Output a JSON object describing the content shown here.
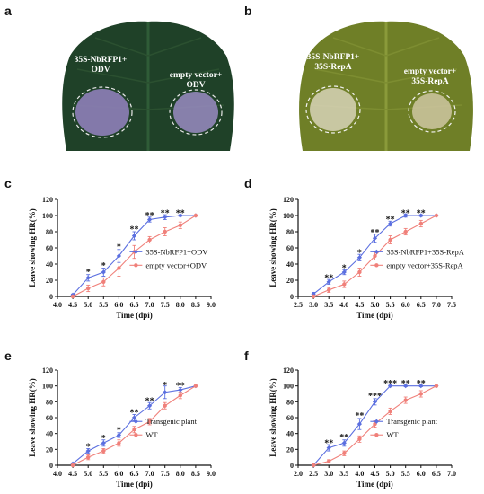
{
  "panels": {
    "a": {
      "letter": "a",
      "label_left": [
        "35S-NbRFP1+",
        "ODV"
      ],
      "label_right": [
        "empty vector+",
        "ODV"
      ]
    },
    "b": {
      "letter": "b",
      "label_left": [
        "35S-NbRFP1+",
        "35S-RepA"
      ],
      "label_right": [
        "empty vector+",
        "35S-RepA"
      ]
    }
  },
  "colors": {
    "series_blue": "#5b6fe0",
    "series_red": "#f0807a",
    "axis": "#111111",
    "leaf_dark": "#1b3a22",
    "leaf_yellow": "#7a8a2a"
  },
  "chart_data": [
    {
      "id": "c",
      "letter": "c",
      "type": "line",
      "xlabel": "Time (dpi)",
      "ylabel": "Leave showing HR(%)",
      "xlim": [
        4.0,
        9.0
      ],
      "xticks": [
        4.0,
        4.5,
        5.0,
        5.5,
        6.0,
        6.5,
        7.0,
        7.5,
        8.0,
        8.5,
        9.0
      ],
      "ylim": [
        0,
        120
      ],
      "yticks": [
        0,
        20,
        40,
        60,
        80,
        100,
        120
      ],
      "legend_position": "center-right",
      "series": [
        {
          "name": "35S-NbRFP1+ODV",
          "color": "#5b6fe0",
          "marker": "diamond",
          "x": [
            4.5,
            5.0,
            5.5,
            6.0,
            6.5,
            7.0,
            7.5,
            8.0,
            8.5
          ],
          "y": [
            2,
            23,
            30,
            50,
            75,
            95,
            98,
            100,
            100
          ],
          "err": [
            1,
            4,
            5,
            8,
            5,
            3,
            3,
            1,
            0
          ]
        },
        {
          "name": "empty vector+ODV",
          "color": "#f0807a",
          "marker": "circle",
          "x": [
            4.5,
            5.0,
            5.5,
            6.0,
            6.5,
            7.0,
            7.5,
            8.0,
            8.5
          ],
          "y": [
            0,
            10,
            18,
            35,
            55,
            70,
            80,
            88,
            100
          ],
          "err": [
            1,
            4,
            5,
            10,
            8,
            4,
            5,
            4,
            0
          ]
        }
      ],
      "annotations": [
        {
          "x": 5.0,
          "y": 30,
          "text": "*"
        },
        {
          "x": 5.5,
          "y": 38,
          "text": "*"
        },
        {
          "x": 6.0,
          "y": 61,
          "text": "*"
        },
        {
          "x": 6.5,
          "y": 83,
          "text": "**"
        },
        {
          "x": 7.0,
          "y": 100,
          "text": "**"
        },
        {
          "x": 7.5,
          "y": 103,
          "text": "**"
        },
        {
          "x": 8.0,
          "y": 103,
          "text": "**"
        }
      ]
    },
    {
      "id": "d",
      "letter": "d",
      "type": "line",
      "xlabel": "Time (dpi)",
      "ylabel": "Leave showing HR(%)",
      "xlim": [
        2.5,
        7.5
      ],
      "xticks": [
        2.5,
        3.0,
        3.5,
        4.0,
        4.5,
        5.0,
        5.5,
        6.0,
        6.5,
        7.0,
        7.5
      ],
      "ylim": [
        0,
        120
      ],
      "yticks": [
        0,
        20,
        40,
        60,
        80,
        100,
        120
      ],
      "legend_position": "center-right",
      "series": [
        {
          "name": "35S-NbRFP1+35S-RepA",
          "color": "#5b6fe0",
          "marker": "diamond",
          "x": [
            3.0,
            3.5,
            4.0,
            4.5,
            5.0,
            5.5,
            6.0,
            6.5,
            7.0
          ],
          "y": [
            3,
            18,
            30,
            48,
            72,
            90,
            100,
            100,
            100
          ],
          "err": [
            2,
            3,
            3,
            4,
            5,
            3,
            2,
            1,
            0
          ]
        },
        {
          "name": "empty vector+35S-RepA",
          "color": "#f0807a",
          "marker": "circle",
          "x": [
            3.0,
            3.5,
            4.0,
            4.5,
            5.0,
            5.5,
            6.0,
            6.5,
            7.0
          ],
          "y": [
            0,
            8,
            15,
            30,
            50,
            70,
            80,
            90,
            100
          ],
          "err": [
            1,
            3,
            4,
            5,
            5,
            5,
            4,
            4,
            0
          ]
        }
      ],
      "annotations": [
        {
          "x": 3.5,
          "y": 23,
          "text": "**"
        },
        {
          "x": 4.0,
          "y": 35,
          "text": "*"
        },
        {
          "x": 4.5,
          "y": 54,
          "text": "*"
        },
        {
          "x": 5.0,
          "y": 79,
          "text": "**"
        },
        {
          "x": 5.5,
          "y": 95,
          "text": "**"
        },
        {
          "x": 6.0,
          "y": 103,
          "text": "**"
        },
        {
          "x": 6.5,
          "y": 103,
          "text": "**"
        }
      ]
    },
    {
      "id": "e",
      "letter": "e",
      "type": "line",
      "xlabel": "Time (dpi)",
      "ylabel": "Leave showing HR(%)",
      "xlim": [
        4.0,
        9.0
      ],
      "xticks": [
        4.0,
        4.5,
        5.0,
        5.5,
        6.0,
        6.5,
        7.0,
        7.5,
        8.0,
        8.5,
        9.0
      ],
      "ylim": [
        0,
        120
      ],
      "yticks": [
        0,
        20,
        40,
        60,
        80,
        100,
        120
      ],
      "legend_position": "center-right",
      "series": [
        {
          "name": "Transgenic plant",
          "color": "#5b6fe0",
          "marker": "diamond",
          "x": [
            4.5,
            5.0,
            5.5,
            6.0,
            6.5,
            7.0,
            7.5,
            8.0,
            8.5
          ],
          "y": [
            2,
            18,
            28,
            38,
            60,
            75,
            92,
            95,
            100
          ],
          "err": [
            1,
            3,
            4,
            3,
            4,
            4,
            8,
            3,
            0
          ]
        },
        {
          "name": "WT",
          "color": "#f0807a",
          "marker": "circle",
          "x": [
            4.5,
            5.0,
            5.5,
            6.0,
            6.5,
            7.0,
            7.5,
            8.0,
            8.5
          ],
          "y": [
            0,
            10,
            18,
            28,
            45,
            55,
            75,
            88,
            100
          ],
          "err": [
            1,
            3,
            3,
            4,
            4,
            4,
            4,
            4,
            0
          ]
        }
      ],
      "annotations": [
        {
          "x": 5.0,
          "y": 23,
          "text": "*"
        },
        {
          "x": 5.5,
          "y": 34,
          "text": "*"
        },
        {
          "x": 6.0,
          "y": 44,
          "text": "*"
        },
        {
          "x": 6.5,
          "y": 66,
          "text": "**"
        },
        {
          "x": 7.0,
          "y": 81,
          "text": "**"
        },
        {
          "x": 7.5,
          "y": 101,
          "text": "*"
        },
        {
          "x": 8.0,
          "y": 100,
          "text": "**"
        }
      ]
    },
    {
      "id": "f",
      "letter": "f",
      "type": "line",
      "xlabel": "Time (dpi)",
      "ylabel": "Leave showing HR(%)",
      "xlim": [
        2.0,
        7.0
      ],
      "xticks": [
        2.0,
        2.5,
        3.0,
        3.5,
        4.0,
        4.5,
        5.0,
        5.5,
        6.0,
        6.5,
        7.0
      ],
      "ylim": [
        0,
        120
      ],
      "yticks": [
        0,
        20,
        40,
        60,
        80,
        100,
        120
      ],
      "legend_position": "center-right",
      "series": [
        {
          "name": "Transgenic plant",
          "color": "#5b6fe0",
          "marker": "diamond",
          "x": [
            2.5,
            3.0,
            3.5,
            4.0,
            4.5,
            5.0,
            5.5,
            6.0,
            6.5
          ],
          "y": [
            0,
            22,
            28,
            52,
            80,
            100,
            100,
            100,
            100
          ],
          "err": [
            1,
            4,
            4,
            7,
            4,
            1,
            1,
            1,
            0
          ]
        },
        {
          "name": "WT",
          "color": "#f0807a",
          "marker": "circle",
          "x": [
            2.5,
            3.0,
            3.5,
            4.0,
            4.5,
            5.0,
            5.5,
            6.0,
            6.5
          ],
          "y": [
            0,
            5,
            15,
            33,
            52,
            68,
            82,
            90,
            100
          ],
          "err": [
            1,
            2,
            3,
            4,
            4,
            4,
            4,
            4,
            0
          ]
        }
      ],
      "annotations": [
        {
          "x": 3.0,
          "y": 28,
          "text": "**"
        },
        {
          "x": 3.5,
          "y": 35,
          "text": "**"
        },
        {
          "x": 4.0,
          "y": 62,
          "text": "**"
        },
        {
          "x": 4.5,
          "y": 87,
          "text": "***"
        },
        {
          "x": 5.0,
          "y": 103,
          "text": "***"
        },
        {
          "x": 5.5,
          "y": 103,
          "text": "**"
        },
        {
          "x": 6.0,
          "y": 103,
          "text": "**"
        }
      ]
    }
  ]
}
